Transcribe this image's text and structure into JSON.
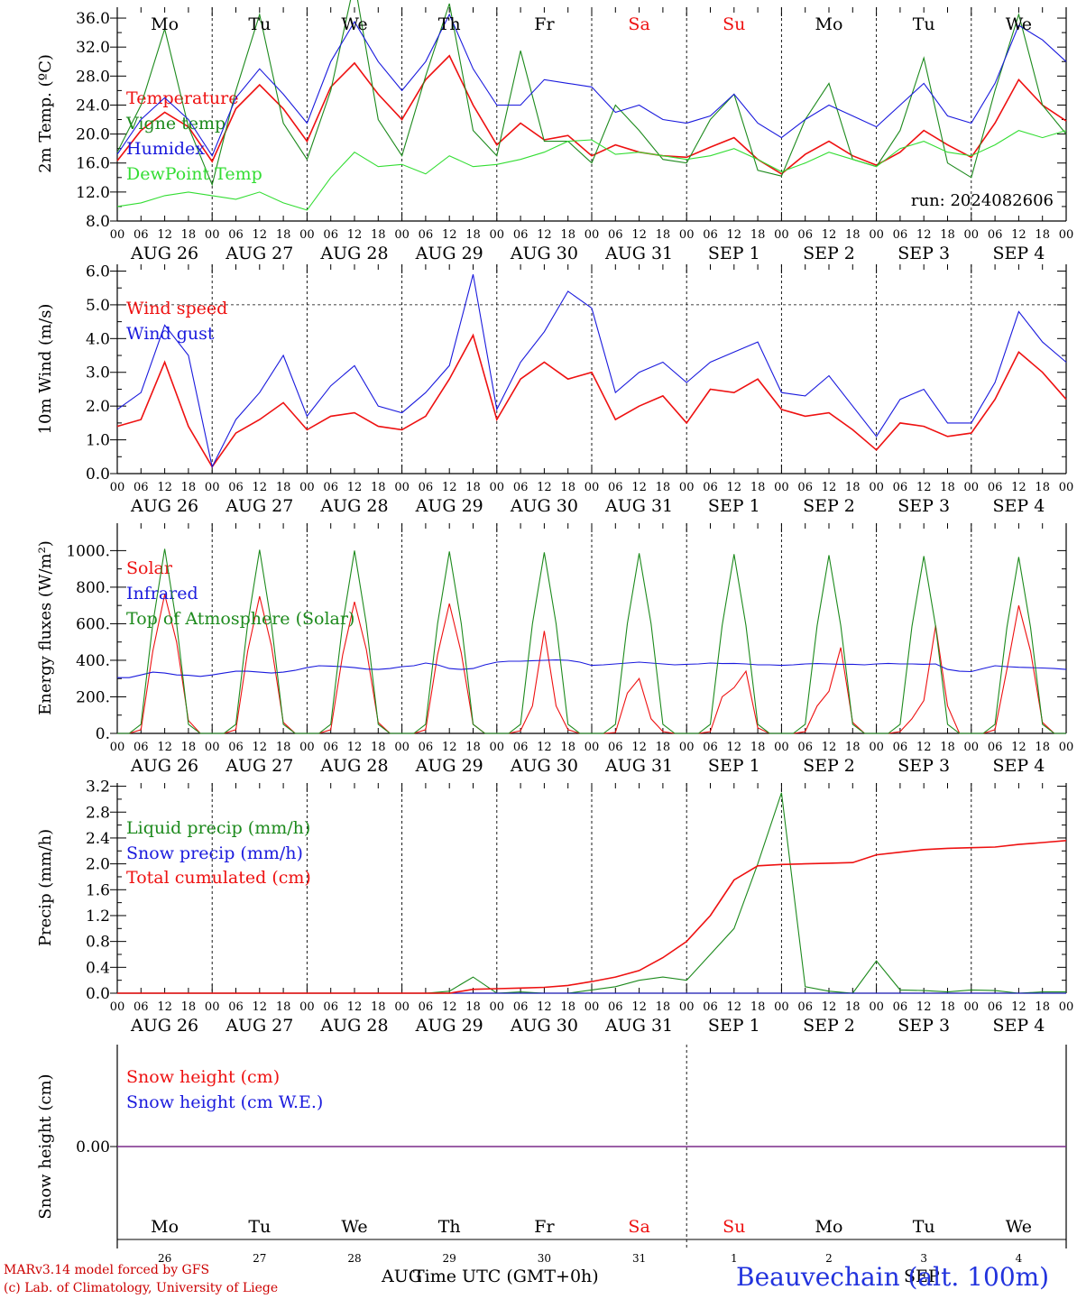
{
  "days": {
    "dates": [
      "AUG 26",
      "AUG 27",
      "AUG 28",
      "AUG 29",
      "AUG 30",
      "AUG 31",
      "SEP  1",
      "SEP  2",
      "SEP  3",
      "SEP  4"
    ],
    "weekdays": [
      "Mo",
      "Tu",
      "We",
      "Th",
      "Fr",
      "Sa",
      "Su",
      "Mo",
      "Tu",
      "We"
    ],
    "weekend_flags": [
      false,
      false,
      false,
      false,
      false,
      true,
      true,
      false,
      false,
      false
    ],
    "day_numbers": [
      "26",
      "27",
      "28",
      "29",
      "30",
      "31",
      "1",
      "2",
      "3",
      "4"
    ],
    "hour_ticks": [
      "00",
      "06",
      "12",
      "18"
    ],
    "end_tick": "00"
  },
  "colors": {
    "red": "#ee1111",
    "blue": "#1a1add",
    "green": "#1d8a1d",
    "light_green": "#33dd33",
    "purple": "#7a2a8a"
  },
  "run_label": "run: 2024082606",
  "footer": {
    "model": "MARv3.14 model forced by GFS",
    "credit": "(c) Lab. of Climatology, University of Liege",
    "axis_title": "Time UTC (GMT+0h)",
    "month_left": "AUG",
    "month_right": "SEP",
    "station": "Beauvechain (alt. 100m)"
  },
  "chart_data": [
    {
      "type": "line",
      "ylabel": "2m Temp. (ºC)",
      "ylim": [
        8,
        37
      ],
      "yticks": [
        "8.0",
        "12.0",
        "16.0",
        "20.0",
        "24.0",
        "28.0",
        "32.0",
        "36.0"
      ],
      "ytick_values": [
        8,
        12,
        16,
        20,
        24,
        28,
        32,
        36
      ],
      "x_unit": "hours since 2024-08-26 00 UTC",
      "x": [
        0,
        6,
        12,
        18,
        24,
        30,
        36,
        42,
        48,
        54,
        60,
        66,
        72,
        78,
        84,
        90,
        96,
        102,
        108,
        114,
        120,
        126,
        132,
        138,
        144,
        150,
        156,
        162,
        168,
        174,
        180,
        186,
        192,
        198,
        204,
        210,
        216,
        222,
        228,
        234,
        240
      ],
      "legend_placement": "upper-left",
      "series": [
        {
          "name": "Temperature",
          "color": "red",
          "values": [
            16.3,
            20.5,
            23.0,
            21.0,
            16.2,
            23.5,
            26.8,
            23.5,
            19.0,
            26.5,
            29.8,
            25.5,
            22.0,
            27.5,
            30.8,
            24.0,
            18.5,
            21.5,
            19.2,
            19.8,
            17.0,
            18.5,
            17.5,
            17.0,
            16.8,
            18.2,
            19.5,
            16.5,
            14.5,
            17.2,
            19.0,
            17.0,
            15.7,
            17.5,
            20.5,
            18.5,
            16.8,
            21.5,
            27.5,
            24.0,
            21.8
          ]
        },
        {
          "name": "Vigne temp",
          "color": "green",
          "values": [
            17.5,
            24.0,
            34.5,
            21.0,
            13.0,
            26.0,
            36.5,
            21.5,
            16.5,
            26.0,
            41.0,
            22.0,
            17.0,
            28.0,
            38.0,
            20.5,
            17.0,
            31.5,
            19.0,
            19.0,
            16.0,
            24.0,
            20.5,
            16.5,
            16.0,
            22.0,
            25.5,
            15.0,
            14.2,
            22.0,
            27.0,
            16.5,
            15.5,
            20.5,
            30.5,
            16.0,
            14.0,
            26.0,
            36.5,
            24.0,
            20.0
          ]
        },
        {
          "name": "Humidex",
          "color": "blue",
          "values": [
            17.2,
            22.0,
            25.0,
            22.0,
            17.0,
            25.0,
            29.0,
            25.5,
            21.5,
            30.0,
            35.5,
            30.0,
            26.0,
            30.0,
            36.5,
            29.0,
            24.0,
            24.0,
            27.5,
            27.0,
            26.5,
            23.0,
            24.0,
            22.0,
            21.5,
            22.5,
            25.5,
            21.5,
            19.5,
            22.0,
            24.0,
            22.5,
            21.0,
            24.0,
            27.0,
            22.5,
            21.5,
            27.0,
            35.0,
            33.0,
            30.0
          ]
        },
        {
          "name": "DewPoint Temp",
          "color": "light_green",
          "values": [
            10.0,
            10.5,
            11.5,
            12.0,
            11.5,
            11.0,
            12.0,
            10.5,
            9.5,
            14.0,
            17.5,
            15.5,
            15.8,
            14.5,
            17.0,
            15.5,
            15.8,
            16.5,
            17.5,
            19.0,
            19.2,
            17.2,
            17.5,
            17.0,
            16.5,
            17.0,
            18.0,
            16.5,
            14.8,
            16.0,
            17.5,
            16.5,
            15.5,
            18.0,
            19.0,
            17.5,
            17.0,
            18.5,
            20.5,
            19.5,
            20.5
          ]
        }
      ]
    },
    {
      "type": "line",
      "ylabel": "10m Wind (m/s)",
      "ylim": [
        0,
        6
      ],
      "yticks": [
        "0.0",
        "1.0",
        "2.0",
        "3.0",
        "4.0",
        "5.0",
        "6.0"
      ],
      "ytick_values": [
        0,
        1,
        2,
        3,
        4,
        5,
        6
      ],
      "reference_line": 5.0,
      "x_unit": "hours since 2024-08-26 00 UTC",
      "x": [
        0,
        6,
        12,
        18,
        24,
        30,
        36,
        42,
        48,
        54,
        60,
        66,
        72,
        78,
        84,
        90,
        96,
        102,
        108,
        114,
        120,
        126,
        132,
        138,
        144,
        150,
        156,
        162,
        168,
        174,
        180,
        186,
        192,
        198,
        204,
        210,
        216,
        222,
        228,
        234,
        240
      ],
      "legend_placement": "upper-left",
      "series": [
        {
          "name": "Wind speed",
          "color": "red",
          "values": [
            1.4,
            1.6,
            3.3,
            1.4,
            0.2,
            1.2,
            1.6,
            2.1,
            1.3,
            1.7,
            1.8,
            1.4,
            1.3,
            1.7,
            2.8,
            4.1,
            1.6,
            2.8,
            3.3,
            2.8,
            3.0,
            1.6,
            2.0,
            2.3,
            1.5,
            2.5,
            2.4,
            2.8,
            1.9,
            1.7,
            1.8,
            1.3,
            0.7,
            1.5,
            1.4,
            1.1,
            1.2,
            2.2,
            3.6,
            3.0,
            2.2
          ]
        },
        {
          "name": "Wind gust",
          "color": "blue",
          "values": [
            1.9,
            2.4,
            4.4,
            3.5,
            0.2,
            1.6,
            2.4,
            3.5,
            1.7,
            2.6,
            3.2,
            2.0,
            1.8,
            2.4,
            3.2,
            5.9,
            1.9,
            3.3,
            4.2,
            5.4,
            4.9,
            2.4,
            3.0,
            3.3,
            2.7,
            3.3,
            3.6,
            3.9,
            2.4,
            2.3,
            2.9,
            2.0,
            1.1,
            2.2,
            2.5,
            1.5,
            1.5,
            2.7,
            4.8,
            3.9,
            3.3
          ]
        }
      ]
    },
    {
      "type": "line",
      "ylabel": "Energy fluxes (W/m²)",
      "ylim": [
        0,
        1100
      ],
      "yticks": [
        "0.",
        "200.",
        "400.",
        "600.",
        "800.",
        "1000."
      ],
      "ytick_values": [
        0,
        200,
        400,
        600,
        800,
        1000
      ],
      "x_unit": "hours since 2024-08-26 00 UTC",
      "x": [
        0,
        3,
        6,
        9,
        12,
        15,
        18,
        21,
        24,
        27,
        30,
        33,
        36,
        39,
        42,
        45,
        48,
        51,
        54,
        57,
        60,
        63,
        66,
        69,
        72,
        75,
        78,
        81,
        84,
        87,
        90,
        93,
        96,
        99,
        102,
        105,
        108,
        111,
        114,
        117,
        120,
        123,
        126,
        129,
        132,
        135,
        138,
        141,
        144,
        147,
        150,
        153,
        156,
        159,
        162,
        165,
        168,
        171,
        174,
        177,
        180,
        183,
        186,
        189,
        192,
        195,
        198,
        201,
        204,
        207,
        210,
        213,
        216,
        219,
        222,
        225,
        228,
        231,
        234,
        237,
        240
      ],
      "legend_placement": "upper-left",
      "series": [
        {
          "name": "Solar",
          "color": "red",
          "values": [
            0,
            0,
            20,
            450,
            760,
            500,
            70,
            0,
            0,
            0,
            20,
            450,
            750,
            480,
            60,
            0,
            0,
            0,
            20,
            430,
            720,
            460,
            60,
            0,
            0,
            0,
            20,
            430,
            710,
            440,
            50,
            0,
            0,
            0,
            15,
            150,
            560,
            150,
            20,
            0,
            0,
            0,
            5,
            220,
            300,
            80,
            10,
            0,
            0,
            0,
            10,
            200,
            250,
            340,
            30,
            0,
            0,
            0,
            10,
            150,
            230,
            470,
            60,
            0,
            0,
            0,
            10,
            80,
            180,
            590,
            150,
            0,
            0,
            0,
            20,
            350,
            700,
            450,
            60,
            0,
            0
          ]
        },
        {
          "name": "Infrared",
          "color": "blue",
          "values": [
            305,
            305,
            320,
            335,
            330,
            320,
            318,
            312,
            320,
            330,
            340,
            340,
            335,
            330,
            335,
            345,
            360,
            370,
            368,
            365,
            360,
            352,
            350,
            355,
            365,
            370,
            385,
            375,
            355,
            350,
            355,
            375,
            390,
            395,
            395,
            398,
            400,
            402,
            400,
            390,
            372,
            375,
            380,
            385,
            390,
            385,
            380,
            375,
            378,
            380,
            385,
            382,
            383,
            380,
            375,
            375,
            372,
            375,
            380,
            382,
            380,
            378,
            378,
            375,
            380,
            383,
            380,
            380,
            378,
            380,
            350,
            340,
            338,
            355,
            370,
            365,
            362,
            360,
            358,
            355,
            350
          ]
        },
        {
          "name": "Top of Atmosphere (Solar)",
          "color": "green",
          "values": [
            0,
            0,
            50,
            600,
            1010,
            600,
            50,
            0,
            0,
            0,
            50,
            600,
            1005,
            600,
            50,
            0,
            0,
            0,
            50,
            600,
            1000,
            600,
            50,
            0,
            0,
            0,
            50,
            600,
            995,
            600,
            50,
            0,
            0,
            0,
            50,
            600,
            990,
            600,
            50,
            0,
            0,
            0,
            50,
            600,
            985,
            600,
            50,
            0,
            0,
            0,
            50,
            590,
            980,
            590,
            50,
            0,
            0,
            0,
            50,
            590,
            975,
            590,
            50,
            0,
            0,
            0,
            50,
            585,
            970,
            585,
            50,
            0,
            0,
            0,
            50,
            580,
            965,
            580,
            50,
            0,
            0
          ]
        }
      ]
    },
    {
      "type": "line",
      "ylabel": "Precip (mm/h)",
      "ylim": [
        0,
        3.2
      ],
      "yticks": [
        "0.0",
        "0.4",
        "0.8",
        "1.2",
        "1.6",
        "2.0",
        "2.4",
        "2.8",
        "3.2"
      ],
      "ytick_values": [
        0,
        0.4,
        0.8,
        1.2,
        1.6,
        2.0,
        2.4,
        2.8,
        3.2
      ],
      "x_unit": "hours since 2024-08-26 00 UTC",
      "x": [
        0,
        6,
        12,
        18,
        24,
        30,
        36,
        42,
        48,
        54,
        60,
        66,
        72,
        78,
        84,
        90,
        96,
        102,
        108,
        114,
        120,
        126,
        132,
        138,
        144,
        150,
        156,
        162,
        168,
        174,
        180,
        186,
        192,
        198,
        204,
        210,
        216,
        222,
        228,
        234,
        240
      ],
      "legend_placement": "upper-left",
      "series": [
        {
          "name": "Liquid precip (mm/h)",
          "color": "green",
          "values": [
            0,
            0,
            0,
            0,
            0,
            0,
            0,
            0,
            0,
            0,
            0,
            0,
            0,
            0,
            0.03,
            0.25,
            0,
            0.02,
            0,
            0,
            0.05,
            0.1,
            0.2,
            0.25,
            0.2,
            0.6,
            1.0,
            2.0,
            3.1,
            0.1,
            0.03,
            0,
            0.5,
            0.05,
            0.04,
            0.02,
            0.05,
            0.04,
            0,
            0.02,
            0.02
          ]
        },
        {
          "name": "Snow precip (mm/h)",
          "color": "blue",
          "values": [
            0,
            0,
            0,
            0,
            0,
            0,
            0,
            0,
            0,
            0,
            0,
            0,
            0,
            0,
            0,
            0,
            0,
            0,
            0,
            0,
            0,
            0,
            0,
            0,
            0,
            0,
            0,
            0,
            0,
            0,
            0,
            0,
            0,
            0,
            0,
            0,
            0,
            0,
            0,
            0,
            0
          ]
        },
        {
          "name": "Total cumulated (cm)",
          "color": "red",
          "values": [
            0,
            0,
            0,
            0,
            0,
            0,
            0,
            0,
            0,
            0,
            0,
            0,
            0,
            0,
            0,
            0.06,
            0.07,
            0.08,
            0.09,
            0.12,
            0.18,
            0.25,
            0.35,
            0.55,
            0.8,
            1.2,
            1.75,
            1.97,
            1.99,
            2.0,
            2.01,
            2.02,
            2.14,
            2.18,
            2.22,
            2.24,
            2.25,
            2.26,
            2.3,
            2.33,
            2.36
          ]
        }
      ]
    },
    {
      "type": "line",
      "ylabel": "Snow height (cm)",
      "yticks": [
        "0.00"
      ],
      "ytick_values": [
        0
      ],
      "x_unit": "hours since 2024-08-26 00 UTC",
      "x": [
        0,
        240
      ],
      "legend_placement": "upper-left",
      "series": [
        {
          "name": "Snow height (cm)",
          "color": "red",
          "values": [
            0,
            0
          ]
        },
        {
          "name": "Snow height (cm W.E.)",
          "color": "blue",
          "values": [
            0,
            0
          ]
        }
      ]
    }
  ]
}
